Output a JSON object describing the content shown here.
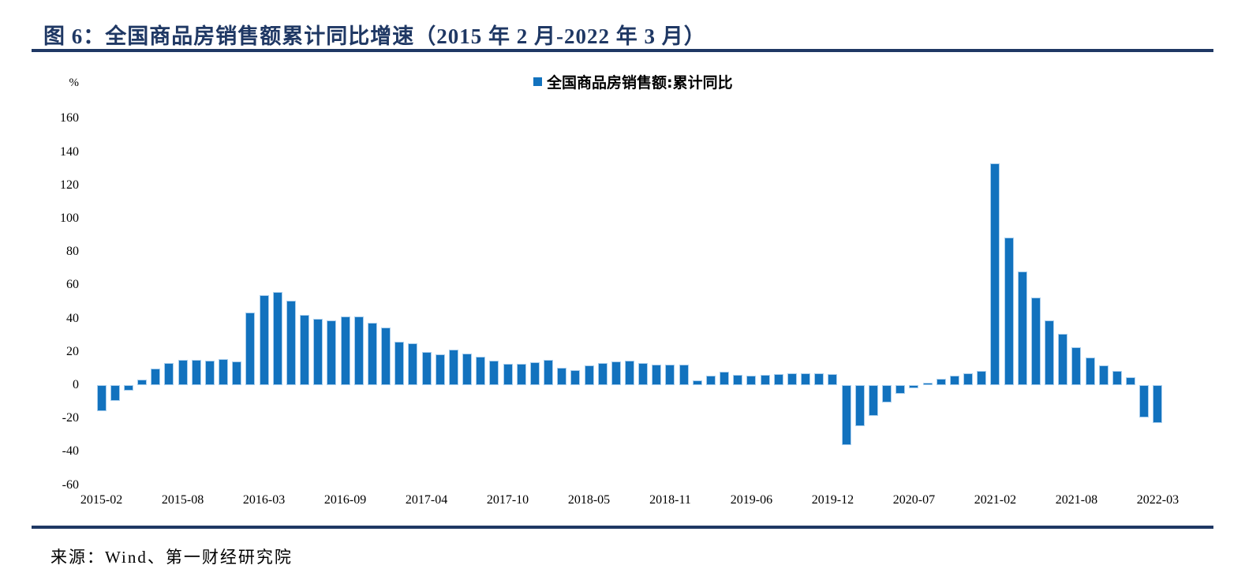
{
  "header": {
    "title": "图 6：全国商品房销售额累计同比增速（2015 年 2 月-2022 年 3 月）"
  },
  "source": {
    "text": "来源：Wind、第一财经研究院"
  },
  "chart_data": {
    "type": "bar",
    "title": "全国商品房销售额累计同比增速（2015年2月-2022年3月）",
    "unit_label": "%",
    "legend": {
      "label": "全国商品房销售额:累计同比",
      "marker_color": "#1272BE",
      "position": "top-center"
    },
    "bar_color": "#1272BE",
    "accent_color": "#1F3864",
    "grid": false,
    "ylim": [
      -60,
      170
    ],
    "y_ticks": [
      160,
      140,
      120,
      100,
      80,
      60,
      40,
      20,
      0,
      -20,
      -40,
      -60
    ],
    "x": [
      "2015-02",
      "2015-03",
      "2015-04",
      "2015-05",
      "2015-06",
      "2015-07",
      "2015-08",
      "2015-09",
      "2015-10",
      "2015-11",
      "2015-12",
      "2016-02",
      "2016-03",
      "2016-04",
      "2016-05",
      "2016-06",
      "2016-07",
      "2016-08",
      "2016-09",
      "2016-10",
      "2016-11",
      "2016-12",
      "2017-02",
      "2017-03",
      "2017-04",
      "2017-05",
      "2017-06",
      "2017-07",
      "2017-08",
      "2017-09",
      "2017-10",
      "2017-11",
      "2017-12",
      "2018-02",
      "2018-03",
      "2018-04",
      "2018-05",
      "2018-06",
      "2018-07",
      "2018-08",
      "2018-09",
      "2018-10",
      "2018-11",
      "2018-12",
      "2019-02",
      "2019-03",
      "2019-04",
      "2019-05",
      "2019-06",
      "2019-07",
      "2019-08",
      "2019-09",
      "2019-10",
      "2019-11",
      "2019-12",
      "2020-02",
      "2020-03",
      "2020-04",
      "2020-05",
      "2020-06",
      "2020-07",
      "2020-08",
      "2020-09",
      "2020-10",
      "2020-11",
      "2020-12",
      "2021-02",
      "2021-03",
      "2021-04",
      "2021-05",
      "2021-06",
      "2021-07",
      "2021-08",
      "2021-09",
      "2021-10",
      "2021-11",
      "2021-12",
      "2022-02",
      "2022-03"
    ],
    "series": [
      {
        "name": "全国商品房销售额:累计同比",
        "values": [
          -15.8,
          -9.3,
          -3.1,
          3.1,
          10.0,
          13.4,
          15.3,
          15.3,
          14.9,
          15.6,
          14.4,
          43.6,
          54.1,
          55.9,
          50.7,
          42.1,
          39.8,
          38.7,
          41.3,
          41.2,
          37.5,
          34.8,
          26.0,
          25.1,
          20.1,
          18.6,
          21.5,
          18.9,
          17.2,
          14.6,
          12.6,
          12.7,
          13.7,
          15.3,
          10.4,
          9.0,
          11.8,
          13.2,
          14.4,
          14.5,
          13.3,
          12.5,
          12.1,
          12.2,
          2.8,
          5.6,
          8.1,
          6.1,
          5.6,
          6.2,
          6.7,
          7.1,
          7.3,
          7.3,
          6.5,
          -35.9,
          -24.7,
          -18.6,
          -10.6,
          -5.4,
          -2.1,
          1.6,
          3.7,
          5.8,
          7.2,
          8.7,
          133.4,
          88.5,
          68.2,
          52.4,
          38.9,
          30.7,
          22.8,
          16.6,
          11.8,
          8.5,
          4.8,
          -19.3,
          -22.7
        ]
      }
    ],
    "x_tick_labels": [
      "2015-02",
      "2015-08",
      "2016-03",
      "2016-09",
      "2017-04",
      "2017-10",
      "2018-05",
      "2018-11",
      "2019-06",
      "2019-12",
      "2020-07",
      "2021-02",
      "2021-08",
      "2022-03"
    ],
    "x_tick_indices": [
      0,
      6,
      12,
      18,
      24,
      30,
      36,
      42,
      48,
      54,
      60,
      66,
      72,
      78
    ]
  }
}
